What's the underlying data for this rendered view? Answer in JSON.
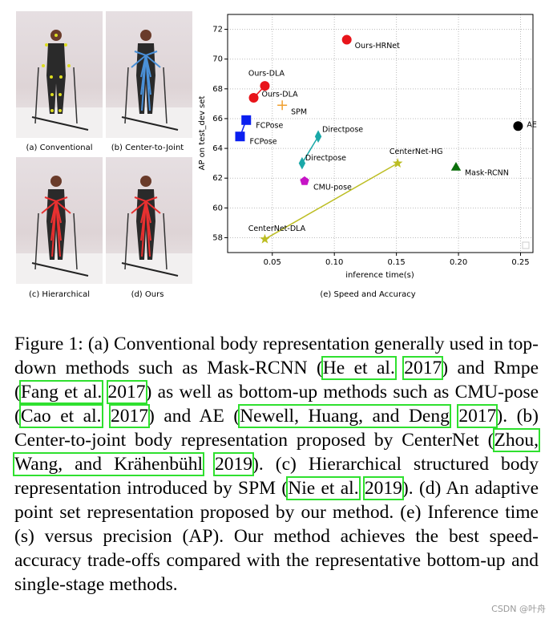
{
  "panels": [
    "(a) Conventional",
    "(b) Center-to-Joint",
    "(c) Hierarchical",
    "(d) Ours"
  ],
  "chart_data": {
    "type": "scatter",
    "caption": "(e) Speed and Accuracy",
    "xlabel": "inference time(s)",
    "ylabel": "AP on test_dev set",
    "xlim": [
      0.014,
      0.26
    ],
    "ylim": [
      57,
      73
    ],
    "xticks": [
      0.05,
      {
        "value": 0.1,
        "label": "0.10"
      },
      0.15,
      {
        "value": 0.2,
        "label": "0.20"
      },
      0.25
    ],
    "yticks": [
      58,
      60,
      62,
      64,
      66,
      68,
      70,
      72
    ],
    "grid": true,
    "series": [
      {
        "color": "#e8141a",
        "marker": "circle",
        "line": false,
        "x": [
          0.11
        ],
        "values": [
          71.3
        ],
        "point_labels": [
          "Ours-HRNet"
        ]
      },
      {
        "color": "#e8141a",
        "marker": "circle",
        "line": true,
        "x": [
          0.035,
          0.044
        ],
        "values": [
          67.4,
          68.2
        ],
        "point_labels": [
          "Ours-DLA",
          "Ours-DLA"
        ]
      },
      {
        "color": "#f0a030",
        "marker": "plus",
        "line": false,
        "x": [
          0.058
        ],
        "values": [
          66.9
        ],
        "point_labels": [
          "SPM"
        ]
      },
      {
        "color": "#0a1ff0",
        "marker": "square",
        "line": true,
        "x": [
          0.024,
          0.029
        ],
        "values": [
          64.8,
          65.9
        ],
        "point_labels": [
          "FCPose",
          "FCPose"
        ]
      },
      {
        "color": "#1aa8a8",
        "marker": "diamond",
        "line": true,
        "x": [
          0.074,
          0.087
        ],
        "values": [
          63.0,
          64.8
        ],
        "point_labels": [
          "Directpose",
          "Directpose"
        ]
      },
      {
        "color": "#c614c6",
        "marker": "pentagon",
        "line": false,
        "x": [
          0.076
        ],
        "values": [
          61.8
        ],
        "point_labels": [
          "CMU-pose"
        ]
      },
      {
        "color": "#bcbd22",
        "marker": "star",
        "line": true,
        "x": [
          0.044,
          0.151
        ],
        "values": [
          57.9,
          63.0
        ],
        "point_labels": [
          "CenterNet-DLA",
          "CenterNet-HG"
        ]
      },
      {
        "color": "#0a6e0a",
        "marker": "triangle",
        "line": false,
        "x": [
          0.198
        ],
        "values": [
          62.7
        ],
        "point_labels": [
          "Mask-RCNN"
        ]
      },
      {
        "color": "#000000",
        "marker": "circle",
        "line": false,
        "x": [
          0.248
        ],
        "values": [
          65.5
        ],
        "point_labels": [
          "AE"
        ]
      }
    ]
  },
  "caption": [
    {
      "text": "Figure 1: (a) Conventional body representation generally used in top-down methods such as Mask-RCNN (",
      "cite": false
    },
    {
      "text": "He et al.",
      "cite": true
    },
    {
      "text": " ",
      "cite": false
    },
    {
      "text": "2017",
      "cite": true
    },
    {
      "text": ") and Rmpe (",
      "cite": false
    },
    {
      "text": "Fang et al.",
      "cite": true
    },
    {
      "text": " ",
      "cite": false
    },
    {
      "text": "2017",
      "cite": true
    },
    {
      "text": ") as well as bottom-up methods such as CMU-pose (",
      "cite": false
    },
    {
      "text": "Cao et al.",
      "cite": true
    },
    {
      "text": " ",
      "cite": false
    },
    {
      "text": "2017",
      "cite": true
    },
    {
      "text": ") and AE (",
      "cite": false
    },
    {
      "text": "Newell, Huang, and Deng",
      "cite": true
    },
    {
      "text": " ",
      "cite": false
    },
    {
      "text": "2017",
      "cite": true
    },
    {
      "text": "). (b) Center-to-joint body representation proposed by CenterNet (",
      "cite": false
    },
    {
      "text": "Zhou, Wang, and Krähenbühl",
      "cite": true
    },
    {
      "text": " ",
      "cite": false
    },
    {
      "text": "2019",
      "cite": true
    },
    {
      "text": "). (c) Hierarchical structured body representation introduced by SPM (",
      "cite": false
    },
    {
      "text": "Nie et al.",
      "cite": true
    },
    {
      "text": " ",
      "cite": false
    },
    {
      "text": "2019",
      "cite": true
    },
    {
      "text": "). (d) An adaptive point set representation proposed by our method. (e) Inference time (s) versus precision (AP). Our method achieves the best speed-accuracy trade-offs compared with the representative bottom-up and single-stage methods.",
      "cite": false
    }
  ],
  "watermark": "CSDN @叶舟"
}
